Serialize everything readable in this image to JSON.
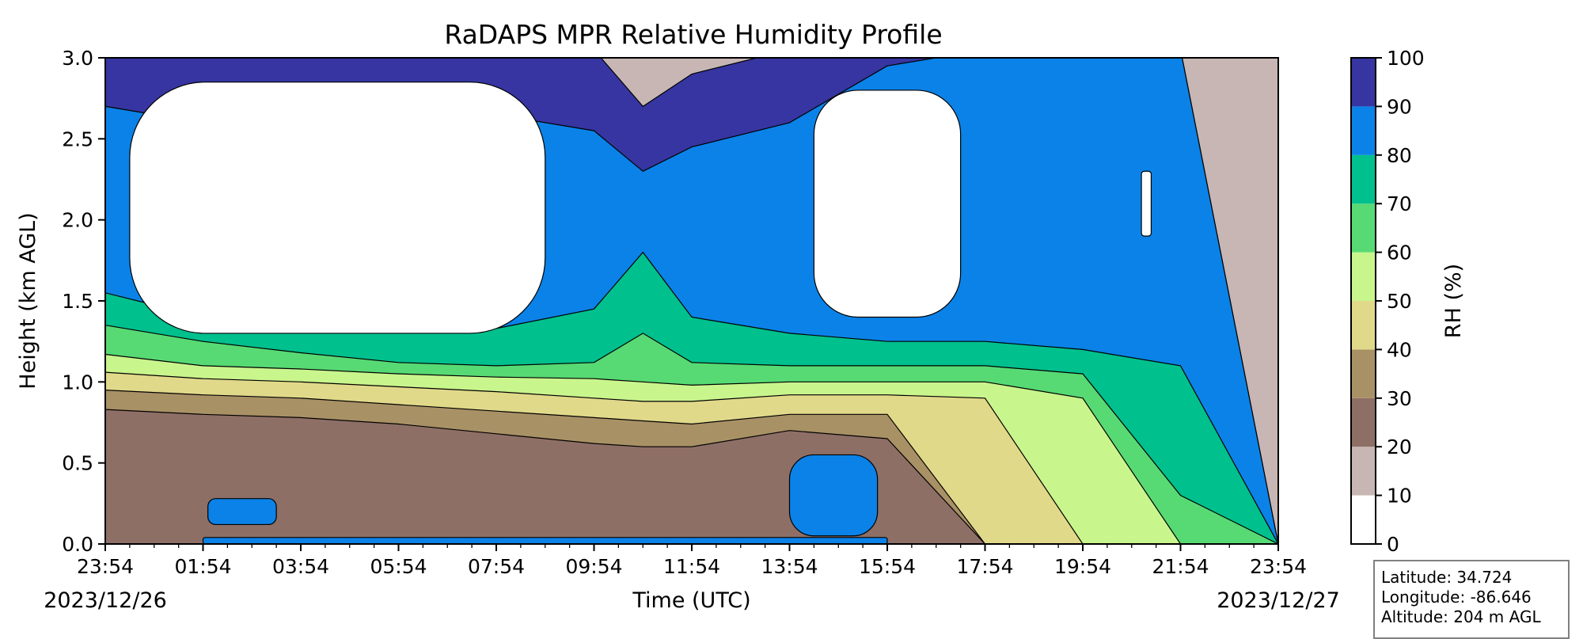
{
  "chart_data": {
    "type": "heatmap",
    "title": "RaDAPS MPR Relative Humidity Profile",
    "xlabel": "Time (UTC)",
    "ylabel": "Height (km AGL)",
    "x_ticks": [
      "23:54",
      "01:54",
      "03:54",
      "05:54",
      "07:54",
      "09:54",
      "11:54",
      "13:54",
      "15:54",
      "17:54",
      "19:54",
      "21:54",
      "23:54"
    ],
    "x_range_hours": [
      0,
      24
    ],
    "start_date": "2023/12/26",
    "end_date": "2023/12/27",
    "y_ticks": [
      "0.0",
      "0.5",
      "1.0",
      "1.5",
      "2.0",
      "2.5",
      "3.0"
    ],
    "ylim": [
      0,
      3
    ],
    "colorbar": {
      "label": "RH (%)",
      "levels": [
        0,
        10,
        20,
        30,
        40,
        50,
        60,
        70,
        80,
        90,
        100
      ],
      "tick_labels": [
        "0",
        "10",
        "20",
        "30",
        "40",
        "50",
        "60",
        "70",
        "80",
        "90",
        "100"
      ],
      "colors": [
        "#ffffff",
        "#c7b6b4",
        "#8e6f66",
        "#a99166",
        "#e1d98a",
        "#c9f58d",
        "#57da74",
        "#00c08d",
        "#0b82e7",
        "#3635a1"
      ]
    },
    "profiles": [
      {
        "t": 0,
        "b": [
          0.83,
          0.95,
          1.06,
          1.17,
          1.35,
          1.55,
          2.7,
          3.2
        ]
      },
      {
        "t": 2,
        "b": [
          0.8,
          0.92,
          1.02,
          1.1,
          1.25,
          1.4,
          2.6,
          3.2
        ]
      },
      {
        "t": 4,
        "b": [
          0.78,
          0.9,
          1.0,
          1.08,
          1.18,
          1.3,
          2.8,
          3.2
        ]
      },
      {
        "t": 6,
        "b": [
          0.74,
          0.86,
          0.97,
          1.05,
          1.12,
          1.3,
          2.75,
          3.2
        ]
      },
      {
        "t": 8,
        "b": [
          0.68,
          0.82,
          0.94,
          1.03,
          1.1,
          1.33,
          2.65,
          3.2
        ]
      },
      {
        "t": 10,
        "b": [
          0.62,
          0.78,
          0.9,
          1.02,
          1.12,
          1.45,
          2.55,
          3.2
        ]
      },
      {
        "t": 11,
        "b": [
          0.6,
          0.76,
          0.88,
          1.0,
          1.3,
          1.8,
          2.3,
          2.7
        ]
      },
      {
        "t": 12,
        "b": [
          0.6,
          0.74,
          0.88,
          0.98,
          1.12,
          1.4,
          2.45,
          2.9
        ]
      },
      {
        "t": 14,
        "b": [
          0.7,
          0.8,
          0.92,
          1.0,
          1.1,
          1.3,
          2.6,
          3.2
        ]
      },
      {
        "t": 16,
        "b": [
          0.65,
          0.8,
          0.92,
          1.0,
          1.1,
          1.25,
          2.95,
          3.2
        ]
      },
      {
        "t": 18,
        "b": [
          0.0,
          0.0,
          0.9,
          1.0,
          1.1,
          1.25,
          3.2,
          3.2
        ]
      },
      {
        "t": 20,
        "b": [
          0.0,
          0.0,
          0.0,
          0.9,
          1.05,
          1.2,
          3.2,
          3.2
        ]
      },
      {
        "t": 22,
        "b": [
          0.0,
          0.0,
          0.0,
          0.0,
          0.3,
          1.1,
          3.2,
          3.2
        ]
      },
      {
        "t": 24,
        "b": [
          0.0,
          0.0,
          0.0,
          0.0,
          0.0,
          0.0,
          0.0,
          0.0
        ]
      }
    ],
    "regions": [
      {
        "name": "clear-dry",
        "range": "0-10",
        "times": [
          0.5,
          9.0
        ],
        "heights": [
          1.3,
          2.85
        ]
      },
      {
        "name": "clear-dry",
        "range": "0-10",
        "times": [
          14.5,
          17.5
        ],
        "heights": [
          1.4,
          2.8
        ]
      },
      {
        "name": "clear-dry",
        "range": "0-10",
        "times": [
          21.2,
          21.4
        ],
        "heights": [
          1.9,
          2.3
        ]
      },
      {
        "name": "moist-core",
        "range": "80-90",
        "times": [
          14.0,
          15.8
        ],
        "heights": [
          0.05,
          0.55
        ]
      },
      {
        "name": "moist-patch",
        "range": "80-90",
        "times": [
          2.1,
          3.5
        ],
        "heights": [
          0.12,
          0.28
        ]
      },
      {
        "name": "surface-layer",
        "range": "80-90",
        "times": [
          2.0,
          16.0
        ],
        "heights": [
          0.0,
          0.04
        ]
      }
    ]
  },
  "info_box": {
    "latitude": "Latitude: 34.724",
    "longitude": "Longitude: -86.646",
    "altitude": "Altitude: 204 m AGL"
  }
}
